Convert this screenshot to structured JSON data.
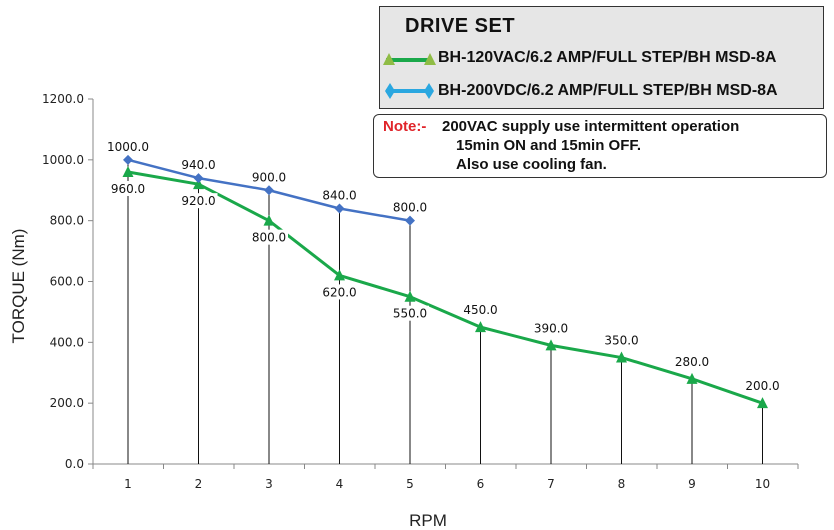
{
  "chart_data": {
    "type": "line",
    "xlabel": "RPM",
    "ylabel": "TORQUE (Nm)",
    "ylim": [
      0,
      1200
    ],
    "yticks": [
      "0.0",
      "200.0",
      "400.0",
      "600.0",
      "800.0",
      "1000.0",
      "1200.0"
    ],
    "x": [
      1,
      2,
      3,
      4,
      5,
      6,
      7,
      8,
      9,
      10
    ],
    "x_tick_labels": [
      "1",
      "2",
      "3",
      "4",
      "5",
      "6",
      "7",
      "8",
      "9",
      "10"
    ],
    "grid": false,
    "legend_placement": "top-right",
    "series": [
      {
        "name": "BH-200VDC/6.2 AMP/FULL STEP/BH MSD-8A",
        "color": "#4472c4",
        "marker": "diamond",
        "x": [
          1,
          2,
          3,
          4,
          5
        ],
        "values": [
          1000,
          940,
          900,
          840,
          800
        ],
        "labels": [
          "1000.0",
          "940.0",
          "900.0",
          "840.0",
          "800.0"
        ]
      },
      {
        "name": "BH-120VAC/6.2 AMP/FULL STEP/BH MSD-8A",
        "color": "#1aa84a",
        "marker": "triangle",
        "x": [
          1,
          2,
          3,
          4,
          5,
          6,
          7,
          8,
          9,
          10
        ],
        "values": [
          960,
          920,
          800,
          620,
          550,
          450,
          390,
          350,
          280,
          200
        ],
        "labels": [
          "960.0",
          "920.0",
          "800.0",
          "620.0",
          "550.0",
          "450.0",
          "390.0",
          "350.0",
          "280.0",
          "200.0"
        ]
      }
    ]
  },
  "legend": {
    "title": "DRIVE SET",
    "entries": [
      {
        "label": "BH-120VAC/6.2 AMP/FULL STEP/BH MSD-8A",
        "color": "#1aa84a",
        "marker_color": "#8fbc45",
        "marker": "triangle-icon"
      },
      {
        "label": "BH-200VDC/6.2 AMP/FULL STEP/BH MSD-8A",
        "color": "#2aa7e0",
        "marker_color": "#2aa7e0",
        "marker": "diamond-icon"
      }
    ]
  },
  "note": {
    "label": "Note:-",
    "lines": [
      "200VAC supply use intermittent operation",
      "15min ON and 15min OFF.",
      "Also use cooling fan."
    ]
  }
}
